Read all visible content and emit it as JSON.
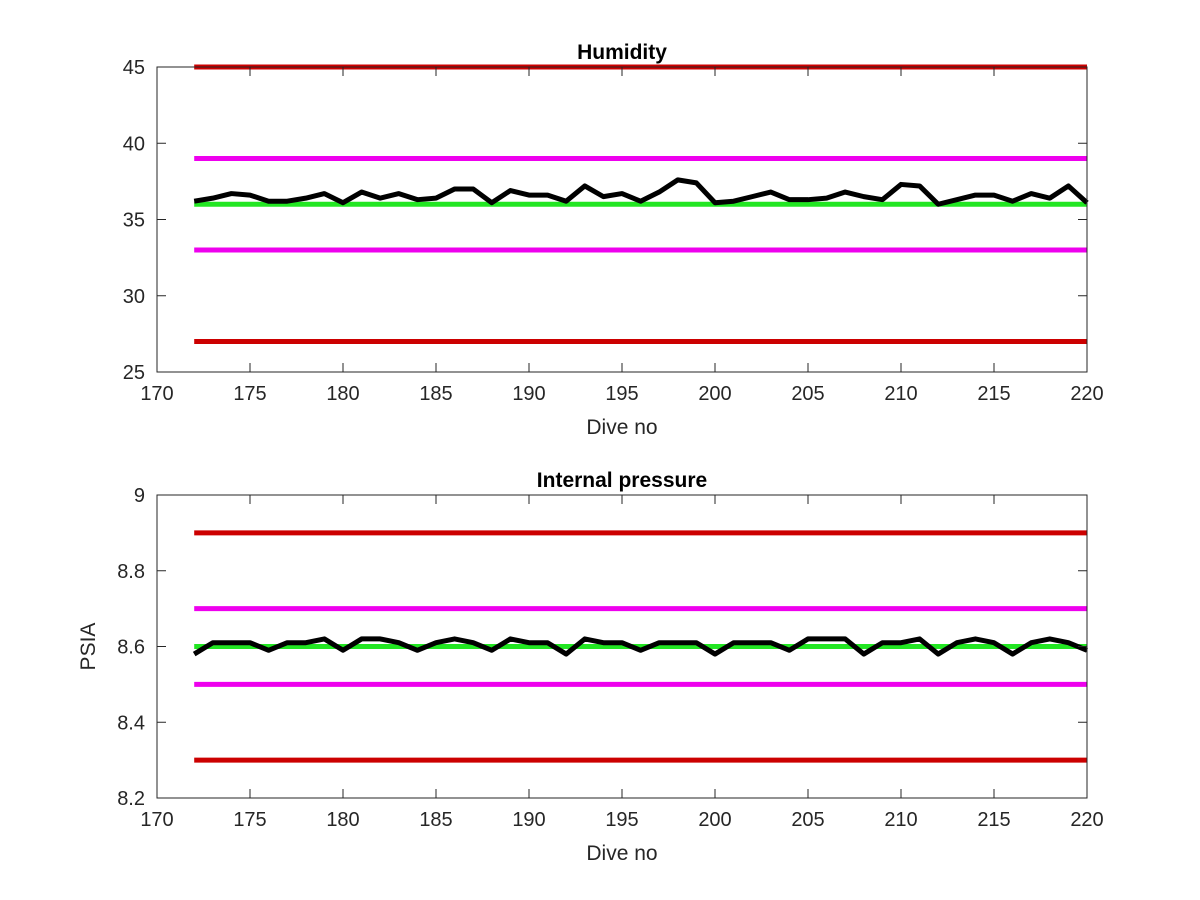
{
  "chart_data": [
    {
      "type": "line",
      "title": "Humidity",
      "xlabel": "Dive no",
      "ylabel": "",
      "xlim": [
        170,
        220
      ],
      "ylim": [
        25,
        45
      ],
      "xticks": [
        170,
        175,
        180,
        185,
        190,
        195,
        200,
        205,
        210,
        215,
        220
      ],
      "yticks": [
        25,
        30,
        35,
        40,
        45
      ],
      "grid": false,
      "x": [
        172,
        173,
        174,
        175,
        176,
        177,
        178,
        179,
        180,
        181,
        182,
        183,
        184,
        185,
        186,
        187,
        188,
        189,
        190,
        191,
        192,
        193,
        194,
        195,
        196,
        197,
        198,
        199,
        200,
        201,
        202,
        203,
        204,
        205,
        206,
        207,
        208,
        209,
        210,
        211,
        212,
        213,
        214,
        215,
        216,
        217,
        218,
        219,
        220
      ],
      "series": [
        {
          "color": "#000000",
          "values": [
            36.2,
            36.4,
            36.7,
            36.6,
            36.2,
            36.2,
            36.4,
            36.7,
            36.1,
            36.8,
            36.4,
            36.7,
            36.3,
            36.4,
            37.0,
            37.0,
            36.1,
            36.9,
            36.6,
            36.6,
            36.2,
            37.2,
            36.5,
            36.7,
            36.2,
            36.8,
            37.6,
            37.4,
            36.1,
            36.2,
            36.5,
            36.8,
            36.3,
            36.3,
            36.4,
            36.8,
            36.5,
            36.3,
            37.3,
            37.2,
            36.0,
            36.3,
            36.6,
            36.6,
            36.2,
            36.7,
            36.4,
            37.2,
            36.1
          ]
        }
      ],
      "reference_lines": [
        {
          "y": 45,
          "color": "#cc0000"
        },
        {
          "y": 39,
          "color": "#ee00ee"
        },
        {
          "y": 36,
          "color": "#22e622"
        },
        {
          "y": 33,
          "color": "#ee00ee"
        },
        {
          "y": 27,
          "color": "#cc0000"
        }
      ]
    },
    {
      "type": "line",
      "title": "Internal pressure",
      "xlabel": "Dive no",
      "ylabel": "PSIA",
      "xlim": [
        170,
        220
      ],
      "ylim": [
        8.2,
        9
      ],
      "xticks": [
        170,
        175,
        180,
        185,
        190,
        195,
        200,
        205,
        210,
        215,
        220
      ],
      "yticks": [
        "8.2",
        "8.4",
        "8.6",
        "8.8",
        "9"
      ],
      "grid": false,
      "x": [
        172,
        173,
        174,
        175,
        176,
        177,
        178,
        179,
        180,
        181,
        182,
        183,
        184,
        185,
        186,
        187,
        188,
        189,
        190,
        191,
        192,
        193,
        194,
        195,
        196,
        197,
        198,
        199,
        200,
        201,
        202,
        203,
        204,
        205,
        206,
        207,
        208,
        209,
        210,
        211,
        212,
        213,
        214,
        215,
        216,
        217,
        218,
        219,
        220
      ],
      "series": [
        {
          "color": "#000000",
          "values": [
            8.58,
            8.61,
            8.61,
            8.61,
            8.59,
            8.61,
            8.61,
            8.62,
            8.59,
            8.62,
            8.62,
            8.61,
            8.59,
            8.61,
            8.62,
            8.61,
            8.59,
            8.62,
            8.61,
            8.61,
            8.58,
            8.62,
            8.61,
            8.61,
            8.59,
            8.61,
            8.61,
            8.61,
            8.58,
            8.61,
            8.61,
            8.61,
            8.59,
            8.62,
            8.62,
            8.62,
            8.58,
            8.61,
            8.61,
            8.62,
            8.58,
            8.61,
            8.62,
            8.61,
            8.58,
            8.61,
            8.62,
            8.61,
            8.59
          ]
        }
      ],
      "reference_lines": [
        {
          "y": 8.9,
          "color": "#cc0000"
        },
        {
          "y": 8.7,
          "color": "#ee00ee"
        },
        {
          "y": 8.6,
          "color": "#22e622"
        },
        {
          "y": 8.5,
          "color": "#ee00ee"
        },
        {
          "y": 8.3,
          "color": "#cc0000"
        }
      ]
    }
  ]
}
